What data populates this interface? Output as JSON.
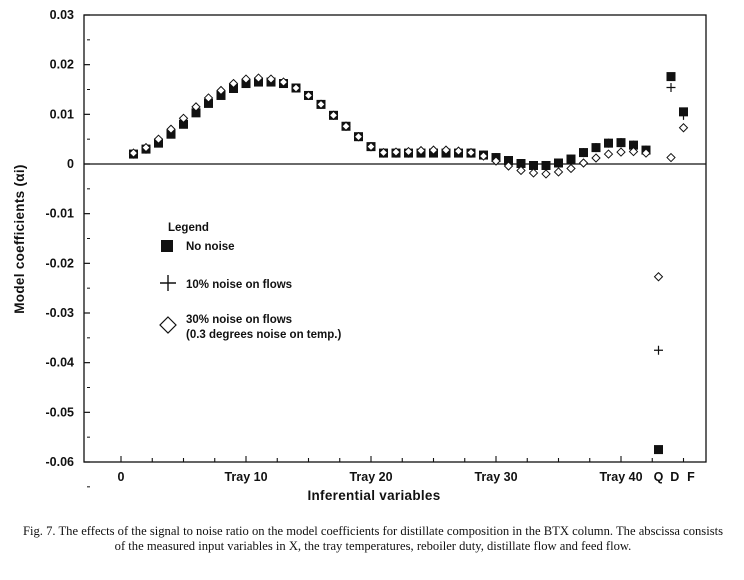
{
  "chart_data": {
    "type": "scatter",
    "xlabel": "Inferential variables",
    "ylabel": "Model coefficients (αi)",
    "ylim": [
      -0.06,
      0.03
    ],
    "xlim": [
      -3,
      58
    ],
    "y_ticks": [
      "0.03",
      "0.02",
      "0.01",
      "0",
      "-0.01",
      "-0.02",
      "-0.03",
      "-0.04",
      "-0.05",
      "-0.06"
    ],
    "x_tick_labels": [
      {
        "x": 0,
        "label": "0"
      },
      {
        "x": 10,
        "label": "Tray 10"
      },
      {
        "x": 20,
        "label": "Tray 20"
      },
      {
        "x": 30,
        "label": "Tray 30"
      },
      {
        "x": 40,
        "label": "Tray 40"
      },
      {
        "x": 43,
        "label": "Q"
      },
      {
        "x": 44.3,
        "label": "D"
      },
      {
        "x": 45.6,
        "label": "F"
      }
    ],
    "legend": {
      "title": "Legend",
      "placement": "center-left",
      "entries": [
        "No noise",
        "10% noise on flows",
        "30% noise on flows",
        "(0.3 degrees noise on temp.)"
      ]
    },
    "series": [
      {
        "name": "No noise",
        "marker": "filled-square",
        "x": [
          1,
          2,
          3,
          4,
          5,
          6,
          7,
          8,
          9,
          10,
          11,
          12,
          13,
          14,
          15,
          16,
          17,
          18,
          19,
          20,
          21,
          22,
          23,
          24,
          25,
          26,
          27,
          28,
          29,
          30,
          31,
          32,
          33,
          34,
          35,
          36,
          37,
          38,
          39,
          40,
          41,
          42,
          43,
          44,
          45
        ],
        "y": [
          0.002,
          0.003,
          0.0042,
          0.006,
          0.008,
          0.0103,
          0.0122,
          0.0138,
          0.0152,
          0.0162,
          0.0165,
          0.0165,
          0.0162,
          0.0153,
          0.0138,
          0.012,
          0.0098,
          0.0076,
          0.0055,
          0.0035,
          0.0022,
          0.0022,
          0.0022,
          0.0022,
          0.0022,
          0.0022,
          0.0022,
          0.0022,
          0.0018,
          0.0013,
          0.0007,
          0.0001,
          -0.0003,
          -0.0003,
          0.0002,
          0.001,
          0.0023,
          0.0033,
          0.0042,
          0.0043,
          0.0038,
          0.0028,
          -0.0575,
          0.0176,
          0.0105
        ]
      },
      {
        "name": "10% noise on flows",
        "marker": "plus",
        "x": [
          1,
          2,
          3,
          4,
          5,
          6,
          7,
          8,
          9,
          10,
          11,
          12,
          13,
          14,
          15,
          16,
          17,
          18,
          19,
          20,
          21,
          22,
          23,
          24,
          25,
          26,
          27,
          28,
          29,
          30,
          31,
          32,
          33,
          34,
          35,
          36,
          37,
          38,
          39,
          40,
          41,
          42,
          43,
          44,
          45
        ],
        "y": [
          0.002,
          0.003,
          0.0045,
          0.0063,
          0.0085,
          0.0108,
          0.0127,
          0.0143,
          0.0157,
          0.0167,
          0.017,
          0.0168,
          0.0163,
          0.0153,
          0.0138,
          0.012,
          0.0098,
          0.0076,
          0.0055,
          0.0035,
          0.0022,
          0.0022,
          0.0022,
          0.0023,
          0.0023,
          0.0024,
          0.0023,
          0.0022,
          0.0018,
          0.0013,
          0.0007,
          0.0001,
          -0.0003,
          -0.0003,
          0.0002,
          0.001,
          0.0023,
          0.0033,
          0.0042,
          0.0043,
          0.0038,
          0.0028,
          -0.0375,
          0.0154,
          0.0098
        ]
      },
      {
        "name": "30% noise on flows (0.3 degrees noise on temp.)",
        "marker": "open-diamond",
        "x": [
          1,
          2,
          3,
          4,
          5,
          6,
          7,
          8,
          9,
          10,
          11,
          12,
          13,
          14,
          15,
          16,
          17,
          18,
          19,
          20,
          21,
          22,
          23,
          24,
          25,
          26,
          27,
          28,
          29,
          30,
          31,
          32,
          33,
          34,
          35,
          36,
          37,
          38,
          39,
          40,
          41,
          42,
          43,
          44,
          45
        ],
        "y": [
          0.0022,
          0.0033,
          0.005,
          0.007,
          0.0092,
          0.0115,
          0.0133,
          0.0148,
          0.0162,
          0.0171,
          0.0173,
          0.0171,
          0.0165,
          0.0153,
          0.0138,
          0.012,
          0.0098,
          0.0076,
          0.0055,
          0.0035,
          0.0023,
          0.0024,
          0.0025,
          0.0027,
          0.0028,
          0.0028,
          0.0026,
          0.0023,
          0.0016,
          0.0006,
          -0.0004,
          -0.0013,
          -0.0018,
          -0.002,
          -0.0016,
          -0.0009,
          0.0002,
          0.0012,
          0.002,
          0.0024,
          0.0025,
          0.0022,
          -0.0227,
          0.0013,
          0.0073
        ]
      }
    ]
  },
  "caption": "Fig. 7. The effects of the signal to noise ratio on the model coefficients for distillate composition in the BTX column. The abscissa consists of the measured input variables in X, the tray temperatures, reboiler duty, distillate flow and feed flow."
}
